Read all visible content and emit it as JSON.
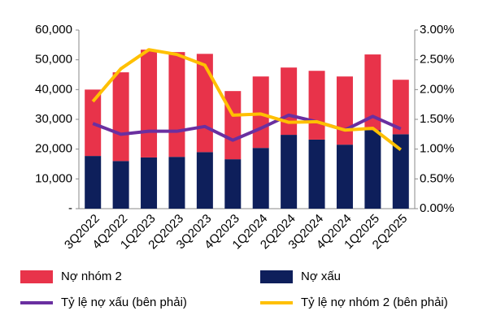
{
  "chart_data": {
    "type": "bar-line",
    "categories": [
      "3Q2022",
      "4Q2022",
      "1Q2023",
      "2Q2023",
      "3Q2023",
      "4Q2023",
      "1Q2024",
      "2Q2024",
      "3Q2024",
      "4Q2024",
      "1Q2025",
      "2Q2025"
    ],
    "series": [
      {
        "name": "Nợ nhóm 2",
        "type": "bar",
        "color": "#e8334a",
        "values": [
          22300,
          29800,
          36200,
          35200,
          33000,
          22900,
          24000,
          22600,
          23100,
          22900,
          25400,
          18300
        ]
      },
      {
        "name": "Nợ xấu",
        "type": "bar",
        "color": "#0e1f5b",
        "values": [
          17700,
          16000,
          17200,
          17400,
          19000,
          16600,
          20400,
          24800,
          23200,
          21500,
          26400,
          25000
        ]
      },
      {
        "name": "Tỷ lệ nợ xấu (bên phải)",
        "type": "line",
        "axis": "y2",
        "color": "#6a2fa0",
        "values": [
          1.43,
          1.25,
          1.3,
          1.3,
          1.38,
          1.15,
          1.35,
          1.57,
          1.46,
          1.32,
          1.55,
          1.34
        ]
      },
      {
        "name": "Tỷ lệ nợ nhóm 2 (bên phải)",
        "type": "line",
        "axis": "y2",
        "color": "#ffc000",
        "values": [
          1.8,
          2.35,
          2.67,
          2.59,
          2.41,
          1.57,
          1.59,
          1.45,
          1.46,
          1.32,
          1.35,
          0.99
        ]
      }
    ],
    "ylim": [
      0,
      60000
    ],
    "yticks": [
      {
        "value": 0,
        "label": "-"
      },
      {
        "value": 10000,
        "label": "10,000"
      },
      {
        "value": 20000,
        "label": "20,000"
      },
      {
        "value": 30000,
        "label": "30,000"
      },
      {
        "value": 40000,
        "label": "40,000"
      },
      {
        "value": 50000,
        "label": "50,000"
      },
      {
        "value": 60000,
        "label": "60,000"
      }
    ],
    "y2lim": [
      0,
      3
    ],
    "y2ticks": [
      {
        "value": 0,
        "label": "0.00%"
      },
      {
        "value": 0.5,
        "label": "0.50%"
      },
      {
        "value": 1,
        "label": "1.00%"
      },
      {
        "value": 1.5,
        "label": "1.50%"
      },
      {
        "value": 2,
        "label": "2.00%"
      },
      {
        "value": 2.5,
        "label": "2.50%"
      },
      {
        "value": 3,
        "label": "3.00%"
      }
    ],
    "grid": false
  }
}
